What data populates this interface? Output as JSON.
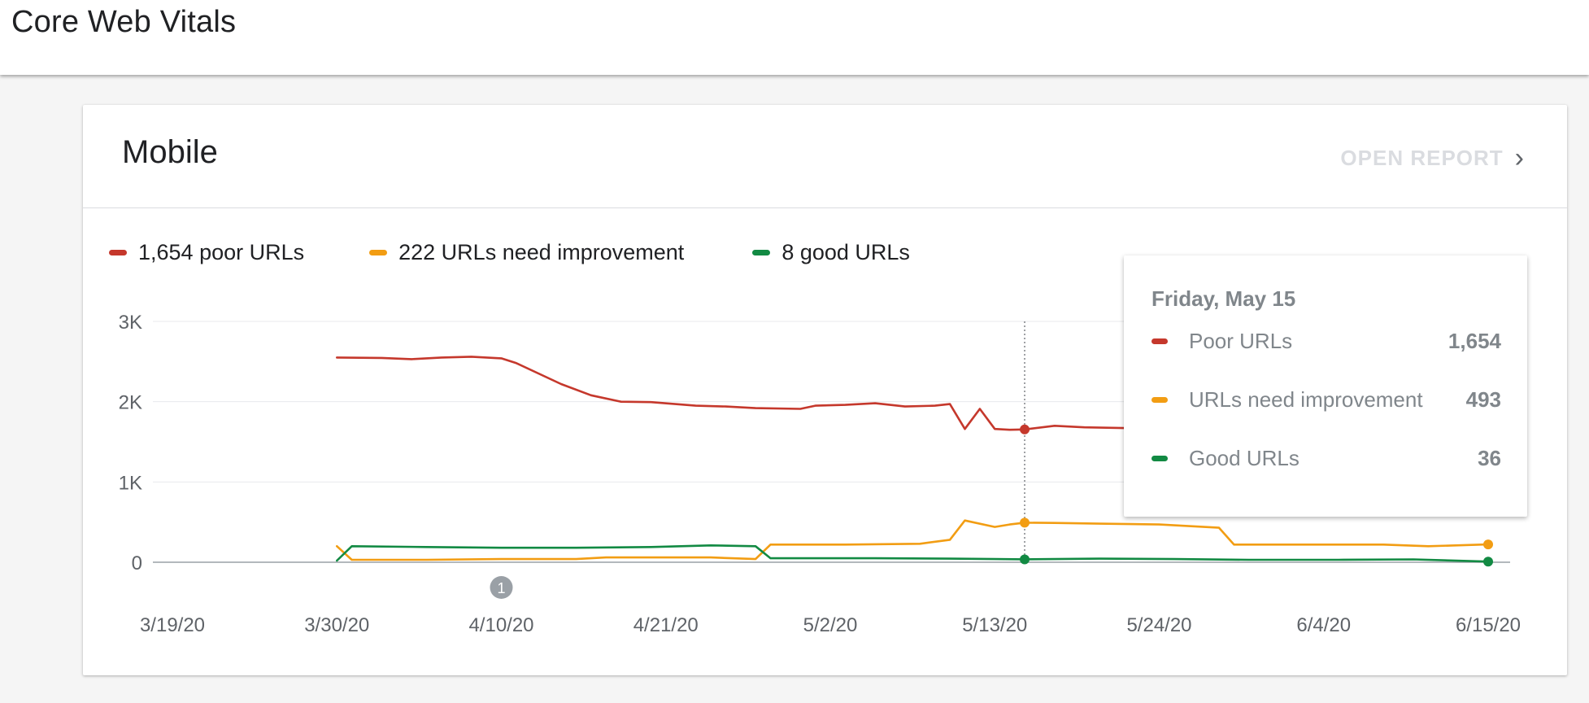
{
  "page": {
    "title": "Core Web Vitals"
  },
  "card": {
    "title": "Mobile",
    "open_report_label": "OPEN REPORT",
    "legend": [
      {
        "label": "1,654 poor URLs",
        "color": "#c5382c"
      },
      {
        "label": "222 URLs need improvement",
        "color": "#f29d13"
      },
      {
        "label": "8 good URLs",
        "color": "#128a43"
      }
    ],
    "annotation_marker": "1"
  },
  "tooltip": {
    "date": "Friday, May 15",
    "rows": [
      {
        "label": "Poor URLs",
        "value": "1,654",
        "color": "#c5382c"
      },
      {
        "label": "URLs need improvement",
        "value": "493",
        "color": "#f29d13"
      },
      {
        "label": "Good URLs",
        "value": "36",
        "color": "#128a43"
      }
    ]
  },
  "chart_data": {
    "type": "line",
    "x_ticks": [
      "3/19/20",
      "3/30/20",
      "4/10/20",
      "4/21/20",
      "5/2/20",
      "5/13/20",
      "5/24/20",
      "6/4/20",
      "6/15/20"
    ],
    "y_ticks": [
      "3K",
      "2K",
      "1K",
      "0"
    ],
    "ylim": [
      0,
      3000
    ],
    "x_range": [
      "2020-03-19",
      "2020-06-15"
    ],
    "grid": true,
    "hover_date": "2020-05-15",
    "annotation": {
      "date": "2020-04-10",
      "label": "1"
    },
    "series": [
      {
        "name": "Poor URLs",
        "color": "#c5382c",
        "points": [
          [
            "2020-03-30",
            2550
          ],
          [
            "2020-04-02",
            2545
          ],
          [
            "2020-04-04",
            2530
          ],
          [
            "2020-04-06",
            2550
          ],
          [
            "2020-04-08",
            2560
          ],
          [
            "2020-04-10",
            2540
          ],
          [
            "2020-04-11",
            2480
          ],
          [
            "2020-04-14",
            2220
          ],
          [
            "2020-04-16",
            2080
          ],
          [
            "2020-04-18",
            2000
          ],
          [
            "2020-04-20",
            1995
          ],
          [
            "2020-04-23",
            1950
          ],
          [
            "2020-04-25",
            1940
          ],
          [
            "2020-04-27",
            1920
          ],
          [
            "2020-04-30",
            1910
          ],
          [
            "2020-05-01",
            1950
          ],
          [
            "2020-05-03",
            1960
          ],
          [
            "2020-05-05",
            1980
          ],
          [
            "2020-05-07",
            1940
          ],
          [
            "2020-05-09",
            1950
          ],
          [
            "2020-05-10",
            1970
          ],
          [
            "2020-05-11",
            1660
          ],
          [
            "2020-05-12",
            1910
          ],
          [
            "2020-05-13",
            1660
          ],
          [
            "2020-05-14",
            1650
          ],
          [
            "2020-05-15",
            1654
          ],
          [
            "2020-05-17",
            1700
          ],
          [
            "2020-05-19",
            1680
          ],
          [
            "2020-05-22",
            1670
          ],
          [
            "2020-05-25",
            1665
          ],
          [
            "2020-05-28",
            1660
          ],
          [
            "2020-05-30",
            1650
          ],
          [
            "2020-06-01",
            1680
          ],
          [
            "2020-06-04",
            1660
          ],
          [
            "2020-06-07",
            1650
          ],
          [
            "2020-06-09",
            1620
          ],
          [
            "2020-06-11",
            1630
          ],
          [
            "2020-06-13",
            1640
          ],
          [
            "2020-06-15",
            1654
          ]
        ]
      },
      {
        "name": "URLs need improvement",
        "color": "#f29d13",
        "points": [
          [
            "2020-03-30",
            200
          ],
          [
            "2020-03-31",
            30
          ],
          [
            "2020-04-05",
            30
          ],
          [
            "2020-04-10",
            40
          ],
          [
            "2020-04-15",
            40
          ],
          [
            "2020-04-17",
            60
          ],
          [
            "2020-04-24",
            60
          ],
          [
            "2020-04-27",
            40
          ],
          [
            "2020-04-28",
            220
          ],
          [
            "2020-05-03",
            220
          ],
          [
            "2020-05-08",
            230
          ],
          [
            "2020-05-10",
            280
          ],
          [
            "2020-05-11",
            520
          ],
          [
            "2020-05-13",
            440
          ],
          [
            "2020-05-14",
            470
          ],
          [
            "2020-05-15",
            493
          ],
          [
            "2020-05-17",
            490
          ],
          [
            "2020-05-20",
            480
          ],
          [
            "2020-05-24",
            470
          ],
          [
            "2020-05-28",
            430
          ],
          [
            "2020-05-29",
            220
          ],
          [
            "2020-06-03",
            220
          ],
          [
            "2020-06-08",
            220
          ],
          [
            "2020-06-11",
            200
          ],
          [
            "2020-06-15",
            222
          ]
        ]
      },
      {
        "name": "Good URLs",
        "color": "#128a43",
        "points": [
          [
            "2020-03-30",
            20
          ],
          [
            "2020-03-31",
            200
          ],
          [
            "2020-04-05",
            190
          ],
          [
            "2020-04-10",
            180
          ],
          [
            "2020-04-15",
            180
          ],
          [
            "2020-04-20",
            190
          ],
          [
            "2020-04-24",
            210
          ],
          [
            "2020-04-27",
            200
          ],
          [
            "2020-04-28",
            50
          ],
          [
            "2020-05-05",
            50
          ],
          [
            "2020-05-10",
            45
          ],
          [
            "2020-05-13",
            40
          ],
          [
            "2020-05-15",
            36
          ],
          [
            "2020-05-20",
            45
          ],
          [
            "2020-05-25",
            40
          ],
          [
            "2020-05-30",
            30
          ],
          [
            "2020-06-05",
            30
          ],
          [
            "2020-06-10",
            35
          ],
          [
            "2020-06-15",
            8
          ]
        ]
      }
    ]
  }
}
